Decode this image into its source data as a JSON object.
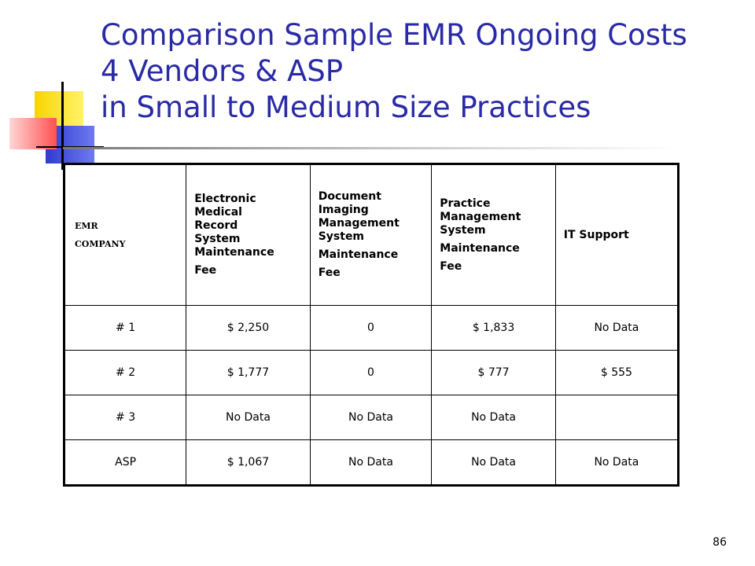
{
  "slide": {
    "title_lines": [
      "Comparison Sample EMR Ongoing Costs",
      "4 Vendors & ASP",
      "in Small to Medium Size Practices"
    ],
    "page_number": "86",
    "accent_color": "#2a2aa8"
  },
  "table": {
    "headers": [
      {
        "lines": [
          "EMR",
          "COMPANY"
        ]
      },
      {
        "lines": [
          "Electronic",
          "Medical",
          "Record",
          "System",
          "Maintenance",
          "Fee"
        ]
      },
      {
        "lines": [
          "Document",
          "Imaging",
          "Management",
          "System",
          "Maintenance",
          "Fee"
        ]
      },
      {
        "lines": [
          "Practice",
          "Management",
          "System",
          "Maintenance",
          "Fee"
        ]
      },
      {
        "lines": [
          "IT Support"
        ]
      }
    ],
    "rows": [
      [
        "# 1",
        "$ 2,250",
        "0",
        "$ 1,833",
        "No Data"
      ],
      [
        "# 2",
        "$ 1,777",
        "0",
        "$ 777",
        "$ 555"
      ],
      [
        "# 3",
        "No Data",
        "No Data",
        "No Data",
        ""
      ],
      [
        "ASP",
        "$ 1,067",
        "No Data",
        "No Data",
        "No Data"
      ]
    ]
  }
}
